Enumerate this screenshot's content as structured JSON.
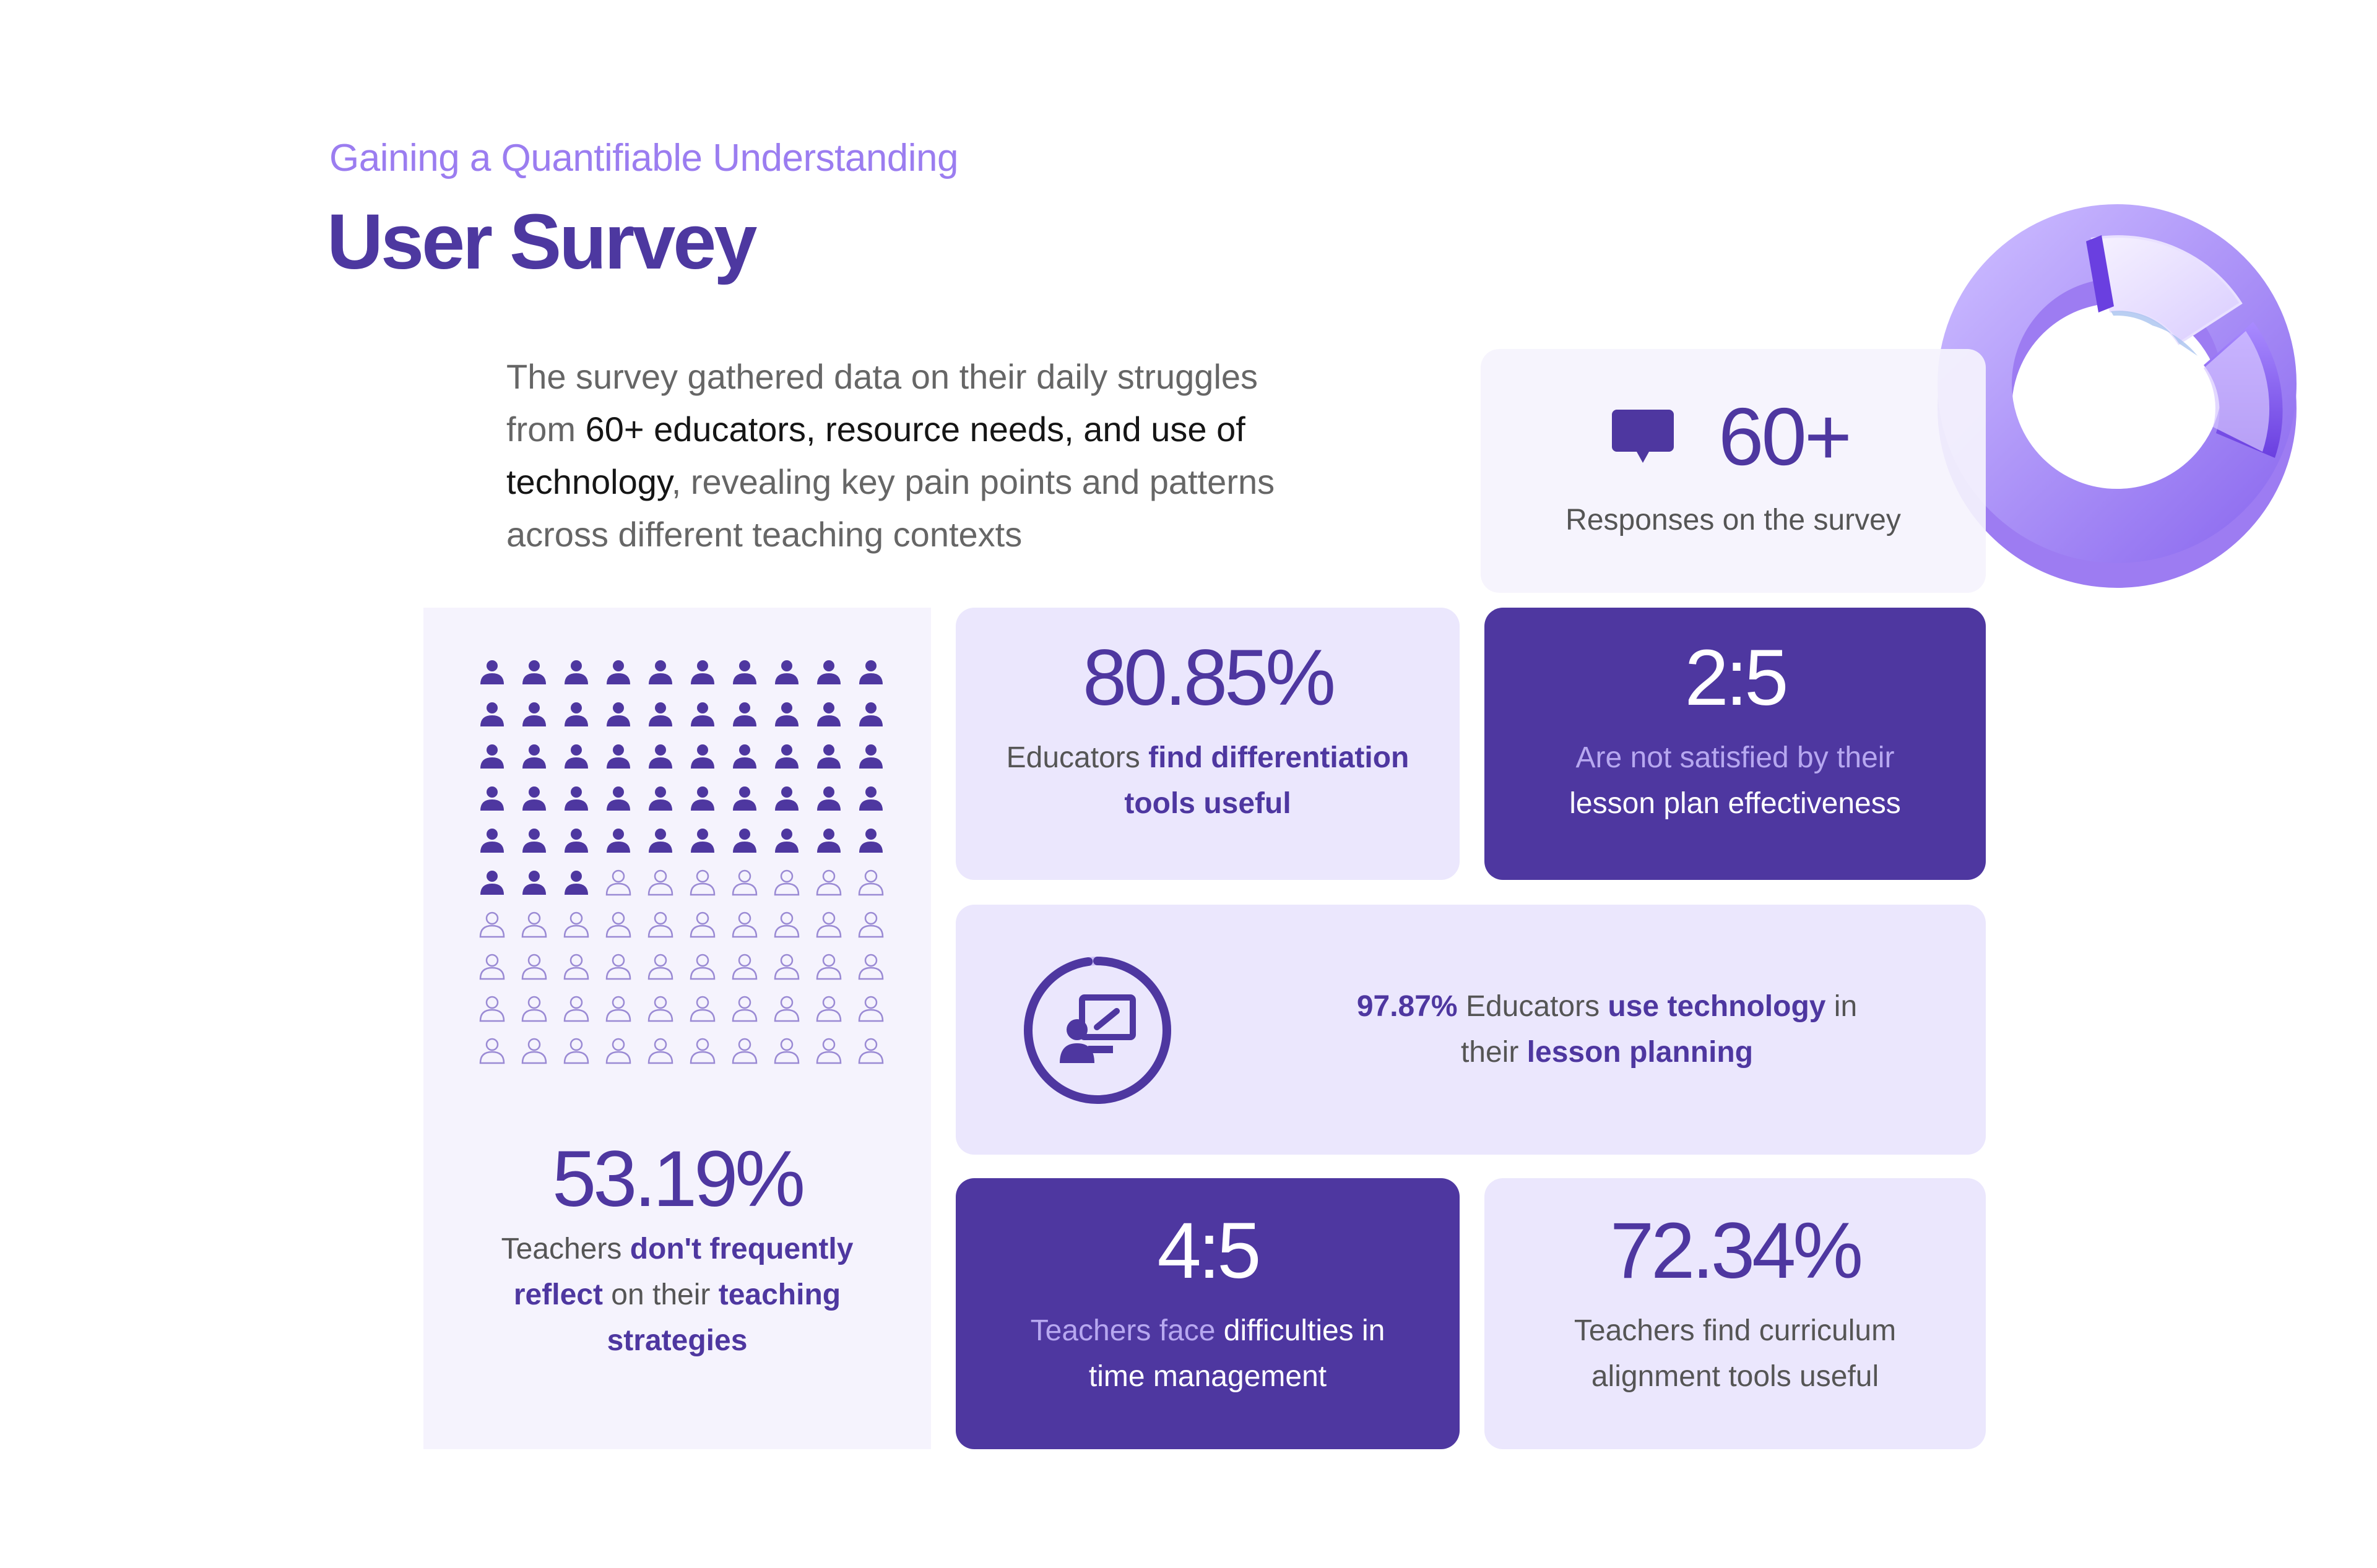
{
  "header": {
    "eyebrow": "Gaining a Quantifiable Understanding",
    "title": "User Survey"
  },
  "intro": {
    "part1": "The survey gathered data on their daily struggles from ",
    "highlight1": "60+ educators, resource needs, and use of technology",
    "part2": ", revealing key pain points and patterns across different teaching contexts"
  },
  "responses": {
    "value": "60+",
    "label": "Responses on the survey",
    "icon": "chat-bubble-icon"
  },
  "reflection": {
    "value": "53.19%",
    "filled_count": 53,
    "total_count": 100,
    "text_a": "Teachers ",
    "text_b": "don't frequently reflect",
    "text_c": " on their ",
    "text_d": "teaching strategies"
  },
  "differentiation": {
    "value": "80.85%",
    "text_a": "Educators ",
    "text_b": "find differentiation tools useful"
  },
  "lesson_plan": {
    "value": "2:5",
    "text_a": "Are not satisfied by their ",
    "text_b": "lesson plan effectiveness"
  },
  "technology": {
    "value": "97.87%",
    "fraction": 0.9787,
    "text_a": " Educators ",
    "text_b": "use technology",
    "text_c": " in their ",
    "text_d": "lesson planning",
    "icon": "presentation-icon"
  },
  "time_management": {
    "value": "4:5",
    "text_a": "Teachers face ",
    "text_b": "difficulties in time management"
  },
  "curriculum": {
    "value": "72.34%",
    "text": "Teachers find curriculum alignment tools useful"
  },
  "colors": {
    "primary": "#4e37a0",
    "accent": "#9b7df0",
    "card_light": "#ebe7fd",
    "card_lighter": "#f5f3fd"
  }
}
